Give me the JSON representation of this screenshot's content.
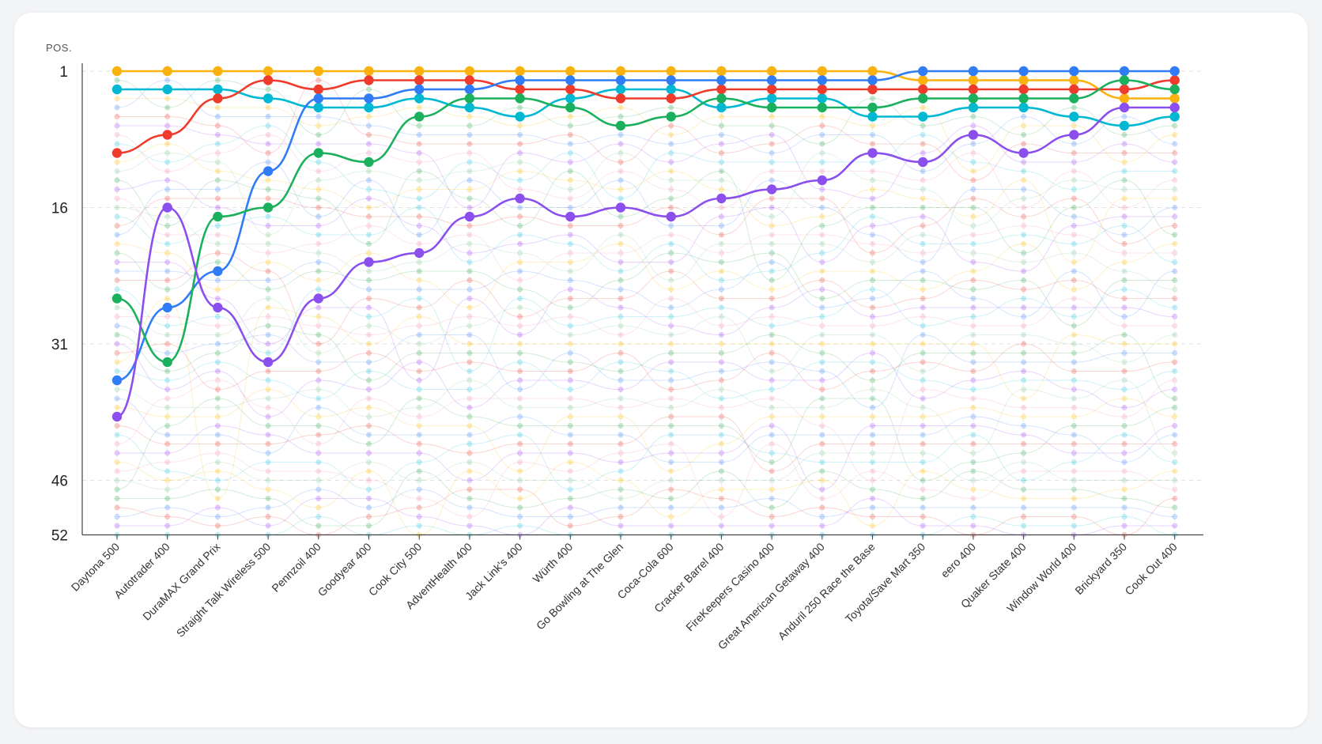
{
  "chart_data": {
    "type": "line",
    "subtype": "bump-chart",
    "ylabel": "POS.",
    "y_reversed": true,
    "ylim": [
      1,
      52
    ],
    "yticks": [
      1,
      16,
      31,
      46,
      52
    ],
    "grid": "dashed gridlines at y ticks and at each race",
    "categories": [
      "Daytona 500",
      "Autotrader 400",
      "DuraMAX Grand Prix",
      "Straight Talk Wireless 500",
      "Pennzoil 400",
      "Goodyear 400",
      "Cook City 500",
      "AdventHealth 400",
      "Jack Link's 400",
      "Würth 400",
      "Go Bowling at The Glen",
      "Coca-Cola 600",
      "Cracker Barrel 400",
      "FireKeepers Casino 400",
      "Great American Getaway 400",
      "Anduril 250 Race the Base",
      "Toyota/Save Mart 350",
      "eero 400",
      "Quaker State 400",
      "Window World 400",
      "Brickyard 350",
      "Cook Out 400"
    ],
    "series": [
      {
        "color": "#fbb20f",
        "values": [
          1,
          1,
          1,
          1,
          1,
          1,
          1,
          1,
          1,
          1,
          1,
          1,
          1,
          1,
          1,
          1,
          2,
          2,
          2,
          2,
          4,
          4
        ]
      },
      {
        "color": "#00b8d1",
        "values": [
          3,
          3,
          3,
          4,
          5,
          5,
          4,
          5,
          6,
          4,
          3,
          3,
          5,
          4,
          4,
          6,
          6,
          5,
          5,
          6,
          7,
          6
        ]
      },
      {
        "color": "#ef3b2c",
        "values": [
          10,
          8,
          4,
          2,
          3,
          2,
          2,
          2,
          3,
          3,
          4,
          4,
          3,
          3,
          3,
          3,
          3,
          3,
          3,
          3,
          3,
          2
        ]
      },
      {
        "color": "#2f7cf6",
        "values": [
          35,
          27,
          23,
          12,
          4,
          4,
          3,
          3,
          2,
          2,
          2,
          2,
          2,
          2,
          2,
          2,
          1,
          1,
          1,
          1,
          1,
          1
        ]
      },
      {
        "color": "#1bb05d",
        "values": [
          26,
          33,
          17,
          16,
          10,
          11,
          6,
          4,
          4,
          5,
          7,
          6,
          4,
          5,
          5,
          5,
          4,
          4,
          4,
          4,
          2,
          3
        ]
      },
      {
        "color": "#8b4fee",
        "values": [
          39,
          16,
          27,
          33,
          26,
          22,
          21,
          17,
          15,
          17,
          16,
          17,
          15,
          14,
          13,
          10,
          11,
          8,
          10,
          8,
          5,
          5
        ]
      }
    ],
    "background_series_count": 46,
    "background_colors": [
      "#fbbc04",
      "#34a853",
      "#4285f4",
      "#ea4335",
      "#a142f4",
      "#24c1e0",
      "#f48fb1",
      "#81c995"
    ]
  }
}
